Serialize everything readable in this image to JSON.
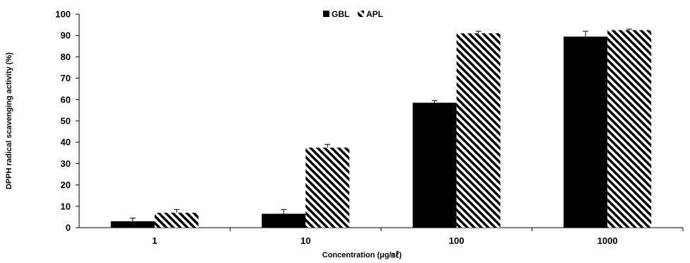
{
  "chart_data": {
    "type": "bar",
    "categories": [
      "1",
      "10",
      "100",
      "1000"
    ],
    "series": [
      {
        "name": "GBL",
        "values": [
          3.0,
          6.5,
          58.5,
          89.5
        ],
        "errors": [
          1.5,
          2.0,
          1.0,
          2.5
        ],
        "fill": "solid",
        "color": "#000000"
      },
      {
        "name": "APL",
        "values": [
          7.0,
          37.5,
          91.0,
          92.5
        ],
        "errors": [
          1.5,
          1.5,
          1.0,
          0.5
        ],
        "fill": "diagonal-hatch",
        "color": "#000000"
      }
    ],
    "xlabel": "Concentration (μg/㎖)",
    "ylabel": "DPPH radical scavenging activity (%)",
    "ylim": [
      0,
      100
    ],
    "yticks": [
      0,
      10,
      20,
      30,
      40,
      50,
      60,
      70,
      80,
      90,
      100
    ],
    "grid": false,
    "legend_position": "top-center"
  }
}
